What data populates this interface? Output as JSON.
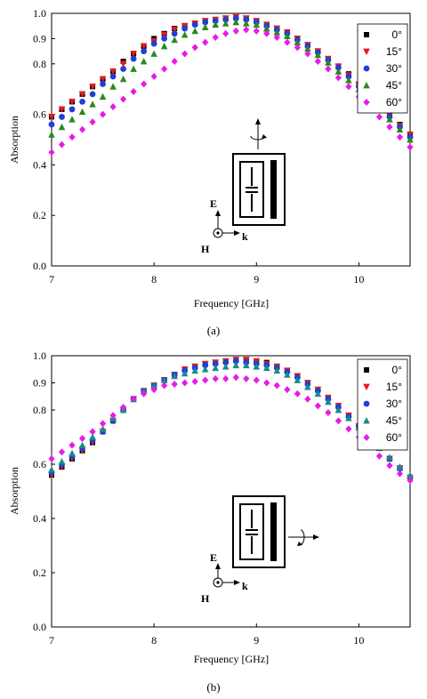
{
  "chart_data": [
    {
      "type": "scatter",
      "caption": "(a)",
      "xlabel": "Frequency [GHz]",
      "ylabel": "Absorption",
      "xlim": [
        7,
        10.5
      ],
      "ylim": [
        0,
        1.0
      ],
      "xticks": [
        7,
        8,
        9,
        10
      ],
      "yticks": [
        "0.0",
        "0.2",
        "0.4",
        "0.6",
        "0.8",
        "0.9",
        "1.0"
      ],
      "ytick_values": [
        0.0,
        0.2,
        0.4,
        0.6,
        0.8,
        0.9,
        1.0
      ],
      "legend_position": "top-right",
      "inset": {
        "e_label": "E",
        "h_label": "H",
        "k_label": "k",
        "rotation": "vertical-axis"
      },
      "x": [
        7.0,
        7.1,
        7.2,
        7.3,
        7.4,
        7.5,
        7.6,
        7.7,
        7.8,
        7.9,
        8.0,
        8.1,
        8.2,
        8.3,
        8.4,
        8.5,
        8.6,
        8.7,
        8.8,
        8.9,
        9.0,
        9.1,
        9.2,
        9.3,
        9.4,
        9.5,
        9.6,
        9.7,
        9.8,
        9.9,
        10.0,
        10.1,
        10.2,
        10.3,
        10.4,
        10.5
      ],
      "series": [
        {
          "name": "0°",
          "marker": "square",
          "color": "#000000",
          "values": [
            0.59,
            0.62,
            0.65,
            0.68,
            0.71,
            0.74,
            0.77,
            0.81,
            0.84,
            0.87,
            0.9,
            0.92,
            0.94,
            0.95,
            0.96,
            0.97,
            0.975,
            0.98,
            0.985,
            0.98,
            0.97,
            0.955,
            0.94,
            0.925,
            0.9,
            0.875,
            0.85,
            0.82,
            0.79,
            0.76,
            0.72,
            0.68,
            0.64,
            0.6,
            0.56,
            0.52
          ]
        },
        {
          "name": "15°",
          "marker": "triangle-down",
          "color": "#e31a1c",
          "values": [
            0.59,
            0.62,
            0.65,
            0.68,
            0.71,
            0.74,
            0.77,
            0.8,
            0.84,
            0.87,
            0.89,
            0.915,
            0.935,
            0.95,
            0.96,
            0.97,
            0.975,
            0.98,
            0.985,
            0.98,
            0.97,
            0.955,
            0.94,
            0.925,
            0.9,
            0.875,
            0.85,
            0.82,
            0.79,
            0.755,
            0.715,
            0.675,
            0.635,
            0.595,
            0.555,
            0.52
          ]
        },
        {
          "name": "30°",
          "marker": "circle",
          "color": "#1f3fd8",
          "values": [
            0.56,
            0.59,
            0.62,
            0.65,
            0.68,
            0.72,
            0.75,
            0.78,
            0.82,
            0.85,
            0.88,
            0.9,
            0.92,
            0.94,
            0.955,
            0.965,
            0.97,
            0.975,
            0.98,
            0.975,
            0.965,
            0.95,
            0.935,
            0.92,
            0.895,
            0.87,
            0.845,
            0.815,
            0.785,
            0.75,
            0.71,
            0.67,
            0.63,
            0.59,
            0.55,
            0.51
          ]
        },
        {
          "name": "45°",
          "marker": "triangle-up",
          "color": "#2a8a1a",
          "values": [
            0.52,
            0.55,
            0.58,
            0.61,
            0.64,
            0.67,
            0.71,
            0.74,
            0.78,
            0.81,
            0.84,
            0.87,
            0.895,
            0.915,
            0.93,
            0.945,
            0.955,
            0.96,
            0.965,
            0.96,
            0.955,
            0.94,
            0.925,
            0.91,
            0.885,
            0.86,
            0.835,
            0.805,
            0.77,
            0.735,
            0.7,
            0.66,
            0.62,
            0.58,
            0.54,
            0.5
          ]
        },
        {
          "name": "60°",
          "marker": "diamond",
          "color": "#e81ae8",
          "values": [
            0.45,
            0.48,
            0.51,
            0.54,
            0.57,
            0.6,
            0.63,
            0.66,
            0.69,
            0.72,
            0.75,
            0.78,
            0.81,
            0.84,
            0.865,
            0.885,
            0.905,
            0.92,
            0.93,
            0.935,
            0.93,
            0.92,
            0.905,
            0.885,
            0.865,
            0.84,
            0.81,
            0.78,
            0.745,
            0.71,
            0.67,
            0.63,
            0.59,
            0.55,
            0.51,
            0.47
          ]
        }
      ]
    },
    {
      "type": "scatter",
      "caption": "(b)",
      "xlabel": "Frequency [GHz]",
      "ylabel": "Absorption",
      "xlim": [
        7,
        10.5
      ],
      "ylim": [
        0,
        1.0
      ],
      "xticks": [
        7,
        8,
        9,
        10
      ],
      "yticks": [
        "0.0",
        "0.2",
        "0.4",
        "0.6",
        "0.8",
        "0.9",
        "1.0"
      ],
      "ytick_values": [
        0.0,
        0.2,
        0.4,
        0.6,
        0.8,
        0.9,
        1.0
      ],
      "legend_position": "top-right",
      "inset": {
        "e_label": "E",
        "h_label": "H",
        "k_label": "k",
        "rotation": "horizontal-axis"
      },
      "x": [
        7.0,
        7.1,
        7.2,
        7.3,
        7.4,
        7.5,
        7.6,
        7.7,
        7.8,
        7.9,
        8.0,
        8.1,
        8.2,
        8.3,
        8.4,
        8.5,
        8.6,
        8.7,
        8.8,
        8.9,
        9.0,
        9.1,
        9.2,
        9.3,
        9.4,
        9.5,
        9.6,
        9.7,
        9.8,
        9.9,
        10.0,
        10.1,
        10.2,
        10.3,
        10.4,
        10.5
      ],
      "series": [
        {
          "name": "0°",
          "marker": "square",
          "color": "#000000",
          "values": [
            0.56,
            0.59,
            0.62,
            0.65,
            0.68,
            0.72,
            0.76,
            0.8,
            0.84,
            0.87,
            0.89,
            0.91,
            0.93,
            0.95,
            0.96,
            0.97,
            0.975,
            0.98,
            0.985,
            0.985,
            0.98,
            0.975,
            0.96,
            0.945,
            0.925,
            0.9,
            0.875,
            0.845,
            0.815,
            0.78,
            0.74,
            0.7,
            0.66,
            0.62,
            0.585,
            0.55
          ]
        },
        {
          "name": "15°",
          "marker": "triangle-down",
          "color": "#e31a1c",
          "values": [
            0.56,
            0.59,
            0.62,
            0.65,
            0.68,
            0.72,
            0.76,
            0.8,
            0.84,
            0.87,
            0.89,
            0.91,
            0.93,
            0.95,
            0.96,
            0.97,
            0.975,
            0.98,
            0.985,
            0.985,
            0.98,
            0.97,
            0.96,
            0.945,
            0.925,
            0.9,
            0.875,
            0.845,
            0.815,
            0.78,
            0.74,
            0.7,
            0.66,
            0.62,
            0.585,
            0.55
          ]
        },
        {
          "name": "30°",
          "marker": "circle",
          "color": "#1f3fd8",
          "values": [
            0.57,
            0.6,
            0.63,
            0.66,
            0.69,
            0.72,
            0.76,
            0.8,
            0.84,
            0.87,
            0.89,
            0.91,
            0.93,
            0.945,
            0.955,
            0.965,
            0.97,
            0.975,
            0.98,
            0.975,
            0.97,
            0.965,
            0.955,
            0.94,
            0.92,
            0.895,
            0.87,
            0.84,
            0.81,
            0.775,
            0.74,
            0.7,
            0.66,
            0.62,
            0.585,
            0.55
          ]
        },
        {
          "name": "45°",
          "marker": "triangle-up",
          "color": "#1a8a8a",
          "values": [
            0.58,
            0.61,
            0.64,
            0.67,
            0.7,
            0.73,
            0.77,
            0.8,
            0.84,
            0.87,
            0.89,
            0.91,
            0.925,
            0.935,
            0.945,
            0.95,
            0.955,
            0.96,
            0.965,
            0.965,
            0.96,
            0.955,
            0.945,
            0.93,
            0.91,
            0.885,
            0.86,
            0.83,
            0.8,
            0.77,
            0.735,
            0.7,
            0.66,
            0.625,
            0.59,
            0.56
          ]
        },
        {
          "name": "60°",
          "marker": "diamond",
          "color": "#e81ae8",
          "values": [
            0.62,
            0.645,
            0.67,
            0.695,
            0.72,
            0.75,
            0.78,
            0.81,
            0.84,
            0.86,
            0.875,
            0.89,
            0.895,
            0.9,
            0.905,
            0.91,
            0.915,
            0.915,
            0.92,
            0.915,
            0.91,
            0.9,
            0.89,
            0.875,
            0.86,
            0.84,
            0.815,
            0.79,
            0.76,
            0.73,
            0.7,
            0.665,
            0.63,
            0.595,
            0.565,
            0.54
          ]
        }
      ]
    }
  ]
}
